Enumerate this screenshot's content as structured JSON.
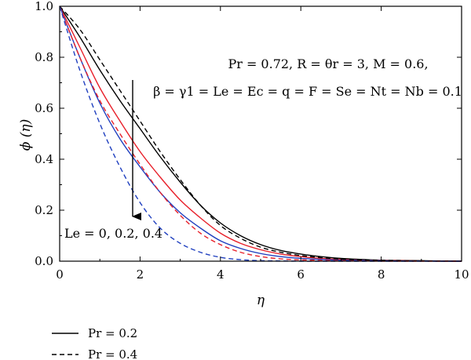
{
  "chart_data": {
    "type": "line",
    "xlabel": "η",
    "ylabel": "ϕ (η)",
    "xlim": [
      0,
      10
    ],
    "ylim": [
      0,
      1.0
    ],
    "xticks": [
      "0",
      "2",
      "4",
      "6",
      "8",
      "10"
    ],
    "yticks": [
      "0.0",
      "0.2",
      "0.4",
      "0.6",
      "0.8",
      "1.0"
    ],
    "annotation_line1": "Pr = 0.72, R = θr = 3, M = 0.6,",
    "annotation_line2": "β = γ1 = Le = Ec = q = F = Se = Nt = Nb = 0.1",
    "arrow_label": "Le = 0, 0.2, 0.4",
    "legend": [
      {
        "label": "Pr = 0.2",
        "style": "solid"
      },
      {
        "label": "Pr = 0.4",
        "style": "dashed"
      }
    ],
    "x": [
      0,
      0.5,
      1,
      1.5,
      2,
      2.5,
      3,
      3.5,
      4,
      4.5,
      5,
      5.5,
      6,
      6.5,
      7,
      7.5,
      8,
      8.5,
      9,
      9.5,
      10
    ],
    "series": [
      {
        "group": "Pr = 0.2",
        "style": "solid",
        "color": "#000000",
        "le": "0",
        "values": [
          1.0,
          0.88,
          0.75,
          0.63,
          0.52,
          0.41,
          0.31,
          0.22,
          0.15,
          0.1,
          0.065,
          0.042,
          0.028,
          0.018,
          0.011,
          0.007,
          0.004,
          0.003,
          0.002,
          0.001,
          0.0
        ]
      },
      {
        "group": "Pr = 0.2",
        "style": "solid",
        "color": "#e8202a",
        "le": "0.2",
        "values": [
          1.0,
          0.84,
          0.68,
          0.55,
          0.43,
          0.33,
          0.24,
          0.17,
          0.11,
          0.07,
          0.045,
          0.028,
          0.018,
          0.011,
          0.007,
          0.004,
          0.003,
          0.002,
          0.001,
          0.001,
          0.0
        ]
      },
      {
        "group": "Pr = 0.2",
        "style": "solid",
        "color": "#1f3fbf",
        "le": "0.4",
        "values": [
          1.0,
          0.8,
          0.62,
          0.48,
          0.37,
          0.27,
          0.19,
          0.13,
          0.08,
          0.05,
          0.03,
          0.018,
          0.011,
          0.007,
          0.004,
          0.003,
          0.002,
          0.001,
          0.001,
          0.0,
          0.0
        ]
      },
      {
        "group": "Pr = 0.4",
        "style": "dashed",
        "color": "#000000",
        "le": "0",
        "values": [
          1.0,
          0.91,
          0.79,
          0.67,
          0.55,
          0.43,
          0.32,
          0.22,
          0.14,
          0.09,
          0.055,
          0.035,
          0.022,
          0.014,
          0.008,
          0.005,
          0.003,
          0.002,
          0.001,
          0.001,
          0.0
        ]
      },
      {
        "group": "Pr = 0.4",
        "style": "dashed",
        "color": "#e8202a",
        "le": "0.2",
        "values": [
          1.0,
          0.8,
          0.63,
          0.5,
          0.38,
          0.27,
          0.18,
          0.11,
          0.065,
          0.035,
          0.018,
          0.009,
          0.005,
          0.003,
          0.002,
          0.001,
          0.0,
          0.0,
          0.0,
          0.0,
          0.0
        ]
      },
      {
        "group": "Pr = 0.4",
        "style": "dashed",
        "color": "#1f3fbf",
        "le": "0.4",
        "values": [
          1.0,
          0.75,
          0.54,
          0.37,
          0.23,
          0.13,
          0.07,
          0.035,
          0.015,
          0.006,
          0.002,
          0.001,
          0.0,
          0.0,
          0.0,
          0.0,
          0.0,
          0.0,
          0.0,
          0.0,
          0.0
        ]
      }
    ]
  }
}
